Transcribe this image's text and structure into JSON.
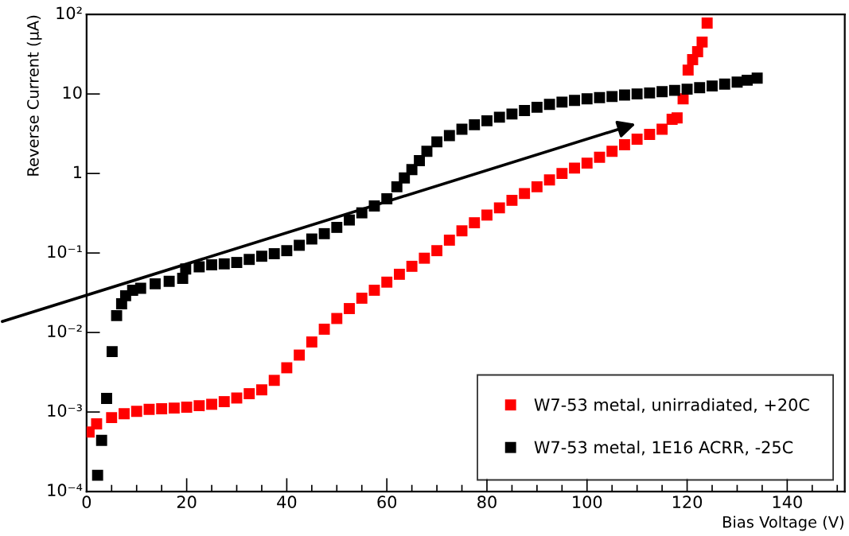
{
  "chart_data": {
    "type": "scatter",
    "xlabel": "Bias Voltage (V)",
    "ylabel": "Reverse Current (μA)",
    "log": "y",
    "grid": false,
    "legend": "bottom right",
    "marker": "square",
    "xlim": [
      0,
      151.5
    ],
    "xticks": [
      0,
      20,
      40,
      60,
      80,
      100,
      120,
      140
    ],
    "ylim": [
      0.0001,
      100
    ],
    "yticks": [
      {
        "value": 0.0001,
        "label": "10⁻⁴"
      },
      {
        "value": 0.001,
        "label": "10⁻³"
      },
      {
        "value": 0.01,
        "label": "10⁻²"
      },
      {
        "value": 0.1,
        "label": "10⁻¹"
      },
      1,
      10,
      {
        "value": 100,
        "label": "10²"
      }
    ],
    "series": [
      {
        "name": "W7-53 metal, unirradiated, +20C",
        "color": "#ff0000",
        "x": [
          0.5,
          2,
          5,
          7.5,
          10,
          12.5,
          15,
          17.5,
          20,
          22.5,
          25,
          27.5,
          30,
          32.5,
          35,
          37.5,
          40,
          42.5,
          45,
          47.5,
          50,
          52.5,
          55,
          57.5,
          60,
          62.5,
          65,
          67.5,
          70,
          72.5,
          75,
          77.5,
          80,
          82.5,
          85,
          87.5,
          90,
          92.5,
          95,
          97.5,
          100,
          102.5,
          105,
          107.5,
          110,
          112.5,
          115,
          117,
          118,
          119.2,
          120.2,
          121.1,
          122.1,
          123,
          124
        ],
        "values": [
          0.00056,
          0.00071,
          0.00085,
          0.00095,
          0.00102,
          0.00108,
          0.0011,
          0.00112,
          0.00115,
          0.0012,
          0.00125,
          0.00135,
          0.0015,
          0.0017,
          0.0019,
          0.0025,
          0.0036,
          0.0052,
          0.0076,
          0.011,
          0.015,
          0.02,
          0.027,
          0.034,
          0.043,
          0.054,
          0.068,
          0.086,
          0.107,
          0.145,
          0.19,
          0.24,
          0.3,
          0.37,
          0.46,
          0.56,
          0.68,
          0.83,
          1.0,
          1.17,
          1.35,
          1.6,
          1.9,
          2.3,
          2.7,
          3.1,
          3.6,
          4.8,
          5.0,
          8.7,
          20,
          27,
          34,
          45,
          78
        ]
      },
      {
        "name": "W7-53 metal, 1E16 ACRR, -25C",
        "color": "#000000",
        "x": [
          2.2,
          3.0,
          4.0,
          5.1,
          6.0,
          7.0,
          7.8,
          9.2,
          10.8,
          13.7,
          16.5,
          19.2,
          19.8,
          22.5,
          25,
          27.5,
          30,
          32.5,
          35,
          37.5,
          40,
          42.5,
          45,
          47.5,
          50,
          52.5,
          55,
          57.5,
          60,
          62,
          63.5,
          65,
          66.5,
          68,
          70,
          72.5,
          75,
          77.5,
          80,
          82.5,
          85,
          87.5,
          90,
          92.5,
          95,
          97.5,
          100,
          102.5,
          105,
          107.5,
          110,
          112.5,
          115,
          117.5,
          120,
          122.5,
          125,
          127.5,
          130,
          132,
          134
        ],
        "values": [
          0.00016,
          0.00044,
          0.00148,
          0.00575,
          0.0163,
          0.023,
          0.029,
          0.034,
          0.036,
          0.041,
          0.044,
          0.048,
          0.063,
          0.067,
          0.071,
          0.073,
          0.076,
          0.083,
          0.091,
          0.098,
          0.107,
          0.125,
          0.15,
          0.175,
          0.21,
          0.26,
          0.32,
          0.39,
          0.48,
          0.68,
          0.88,
          1.12,
          1.45,
          1.9,
          2.5,
          3.0,
          3.6,
          4.1,
          4.6,
          5.1,
          5.6,
          6.2,
          6.8,
          7.4,
          7.9,
          8.3,
          8.7,
          9.0,
          9.3,
          9.7,
          10.0,
          10.3,
          10.7,
          11.1,
          11.5,
          12.0,
          12.6,
          13.3,
          14.1,
          14.9,
          15.8
        ]
      }
    ]
  }
}
